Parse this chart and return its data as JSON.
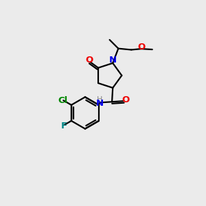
{
  "background_color": "#ebebeb",
  "bond_color": "#000000",
  "N_color": "#0000ee",
  "O_color": "#ee0000",
  "Cl_color": "#008800",
  "F_color": "#008888",
  "H_color": "#888888",
  "figsize": [
    3.0,
    3.0
  ],
  "dpi": 100,
  "xlim": [
    0,
    10
  ],
  "ylim": [
    0,
    10
  ]
}
